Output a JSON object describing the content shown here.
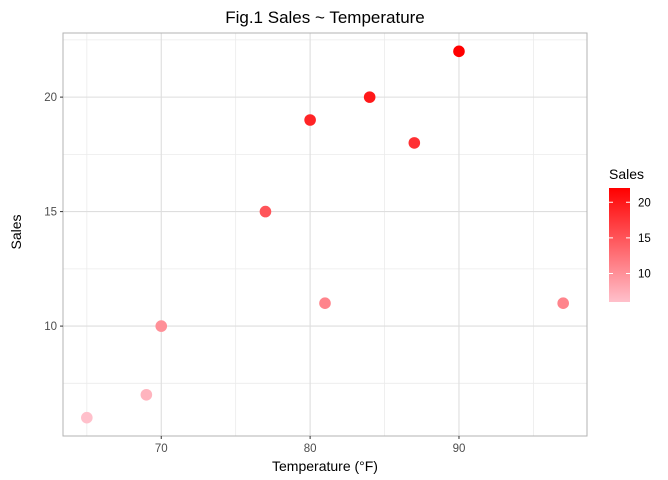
{
  "chart_data": {
    "type": "scatter",
    "title": "Fig.1 Sales ~ Temperature",
    "xlabel": "Temperature (°F)",
    "ylabel": "Sales",
    "xlim": [
      63.4,
      98.6
    ],
    "ylim": [
      5.2,
      22.8
    ],
    "x_ticks": [
      70,
      80,
      90
    ],
    "y_ticks": [
      10,
      15,
      20
    ],
    "x_minor": [
      65,
      75,
      85,
      95
    ],
    "y_minor": [
      7.5,
      12.5,
      17.5,
      22.5
    ],
    "grid": true,
    "points": [
      {
        "x": 65,
        "y": 6
      },
      {
        "x": 69,
        "y": 7
      },
      {
        "x": 70,
        "y": 10
      },
      {
        "x": 77,
        "y": 15
      },
      {
        "x": 80,
        "y": 19
      },
      {
        "x": 81,
        "y": 11
      },
      {
        "x": 84,
        "y": 20
      },
      {
        "x": 87,
        "y": 18
      },
      {
        "x": 90,
        "y": 22
      },
      {
        "x": 97,
        "y": 11
      }
    ],
    "color_scale": {
      "variable": "Sales",
      "title": "Sales",
      "low_color": "#ffc0cb",
      "high_color": "#ff0000",
      "range": [
        6,
        22
      ],
      "ticks": [
        10,
        15,
        20
      ],
      "placement": "right"
    }
  }
}
